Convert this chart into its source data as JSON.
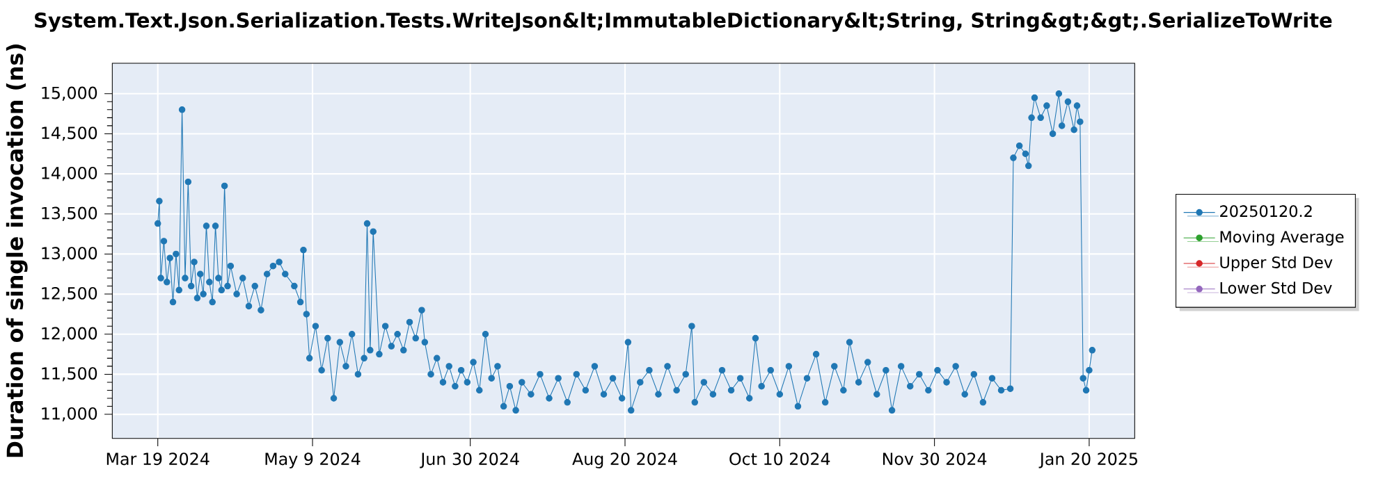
{
  "chart_data": {
    "type": "line",
    "title": "System.Text.Json.Serialization.Tests.WriteJson&lt;ImmutableDictionary&lt;String, String&gt;&gt;.SerializeToWrite",
    "ylabel": "Duration of single invocation (ns)",
    "xlim": [
      "2024-03-04",
      "2025-02-04"
    ],
    "xticks": [
      {
        "value": "2024-03-19",
        "label": "Mar 19 2024"
      },
      {
        "value": "2024-05-09",
        "label": "May 9 2024"
      },
      {
        "value": "2024-06-30",
        "label": "Jun 30 2024"
      },
      {
        "value": "2024-08-20",
        "label": "Aug 20 2024"
      },
      {
        "value": "2024-10-10",
        "label": "Oct 10 2024"
      },
      {
        "value": "2024-11-30",
        "label": "Nov 30 2024"
      },
      {
        "value": "2025-01-20",
        "label": "Jan 20 2025"
      }
    ],
    "ylim": [
      10700,
      15380
    ],
    "yticks": [
      {
        "value": 11000,
        "label": "11,000"
      },
      {
        "value": 11500,
        "label": "11,500"
      },
      {
        "value": 12000,
        "label": "12,000"
      },
      {
        "value": 12500,
        "label": "12,500"
      },
      {
        "value": 13000,
        "label": "13,000"
      },
      {
        "value": 13500,
        "label": "13,500"
      },
      {
        "value": 14000,
        "label": "14,000"
      },
      {
        "value": 14500,
        "label": "14,500"
      },
      {
        "value": 15000,
        "label": "15,000"
      }
    ],
    "grid": true,
    "legend": "right",
    "marker": "circle",
    "line_style": "solid",
    "x": [
      "2024-03-19T00:00",
      "2024-03-19T12:00",
      "2024-03-20",
      "2024-03-21",
      "2024-03-22",
      "2024-03-23",
      "2024-03-24",
      "2024-03-25",
      "2024-03-26",
      "2024-03-27",
      "2024-03-28",
      "2024-03-29",
      "2024-03-30",
      "2024-03-31",
      "2024-04-01",
      "2024-04-02",
      "2024-04-03",
      "2024-04-04",
      "2024-04-05",
      "2024-04-06",
      "2024-04-07",
      "2024-04-08",
      "2024-04-09",
      "2024-04-10",
      "2024-04-11",
      "2024-04-12",
      "2024-04-14",
      "2024-04-16",
      "2024-04-18",
      "2024-04-20",
      "2024-04-22",
      "2024-04-24",
      "2024-04-26",
      "2024-04-28",
      "2024-04-30",
      "2024-05-03",
      "2024-05-05",
      "2024-05-06",
      "2024-05-07",
      "2024-05-08",
      "2024-05-10",
      "2024-05-12",
      "2024-05-14",
      "2024-05-16",
      "2024-05-18",
      "2024-05-20",
      "2024-05-22",
      "2024-05-24",
      "2024-05-26",
      "2024-05-27",
      "2024-05-28",
      "2024-05-29",
      "2024-05-31",
      "2024-06-02",
      "2024-06-04",
      "2024-06-06",
      "2024-06-08",
      "2024-06-10",
      "2024-06-12",
      "2024-06-14",
      "2024-06-15",
      "2024-06-17",
      "2024-06-19",
      "2024-06-21",
      "2024-06-23",
      "2024-06-25",
      "2024-06-27",
      "2024-06-29",
      "2024-07-01",
      "2024-07-03",
      "2024-07-05",
      "2024-07-07",
      "2024-07-09",
      "2024-07-11",
      "2024-07-13",
      "2024-07-15",
      "2024-07-17",
      "2024-07-20",
      "2024-07-23",
      "2024-07-26",
      "2024-07-29",
      "2024-08-01",
      "2024-08-04",
      "2024-08-07",
      "2024-08-10",
      "2024-08-13",
      "2024-08-16",
      "2024-08-19",
      "2024-08-21",
      "2024-08-22",
      "2024-08-25",
      "2024-08-28",
      "2024-08-31",
      "2024-09-03",
      "2024-09-06",
      "2024-09-09",
      "2024-09-11",
      "2024-09-12",
      "2024-09-15",
      "2024-09-18",
      "2024-09-21",
      "2024-09-24",
      "2024-09-27",
      "2024-09-30",
      "2024-10-02",
      "2024-10-04",
      "2024-10-07",
      "2024-10-10",
      "2024-10-13",
      "2024-10-16",
      "2024-10-19",
      "2024-10-22",
      "2024-10-25",
      "2024-10-28",
      "2024-10-31",
      "2024-11-02",
      "2024-11-05",
      "2024-11-08",
      "2024-11-11",
      "2024-11-14",
      "2024-11-16",
      "2024-11-19",
      "2024-11-22",
      "2024-11-25",
      "2024-11-28",
      "2024-12-01",
      "2024-12-04",
      "2024-12-07",
      "2024-12-10",
      "2024-12-13",
      "2024-12-16",
      "2024-12-19",
      "2024-12-22",
      "2024-12-25",
      "2024-12-26",
      "2024-12-28",
      "2024-12-30",
      "2024-12-31",
      "2025-01-01",
      "2025-01-02",
      "2025-01-04",
      "2025-01-06",
      "2025-01-08",
      "2025-01-10",
      "2025-01-11",
      "2025-01-13",
      "2025-01-15",
      "2025-01-16",
      "2025-01-17",
      "2025-01-18",
      "2025-01-19",
      "2025-01-20",
      "2025-01-21"
    ],
    "series": [
      {
        "name": "20250120.2",
        "color": "#1f77b4",
        "values": [
          13380,
          13660,
          12700,
          13160,
          12650,
          12950,
          12400,
          13000,
          12550,
          14800,
          12700,
          13900,
          12600,
          12900,
          12450,
          12750,
          12500,
          13350,
          12650,
          12400,
          13350,
          12700,
          12550,
          13850,
          12600,
          12850,
          12500,
          12700,
          12350,
          12600,
          12300,
          12750,
          12850,
          12900,
          12750,
          12600,
          12400,
          13050,
          12250,
          11700,
          12100,
          11550,
          11950,
          11200,
          11900,
          11600,
          12000,
          11500,
          11700,
          13380,
          11800,
          13280,
          11750,
          12100,
          11850,
          12000,
          11800,
          12150,
          11950,
          12300,
          11900,
          11500,
          11700,
          11400,
          11600,
          11350,
          11550,
          11400,
          11650,
          11300,
          12000,
          11450,
          11600,
          11100,
          11350,
          11050,
          11400,
          11250,
          11500,
          11200,
          11450,
          11150,
          11500,
          11300,
          11600,
          11250,
          11450,
          11200,
          11900,
          11050,
          11400,
          11550,
          11250,
          11600,
          11300,
          11500,
          12100,
          11150,
          11400,
          11250,
          11550,
          11300,
          11450,
          11200,
          11950,
          11350,
          11550,
          11250,
          11600,
          11100,
          11450,
          11750,
          11150,
          11600,
          11300,
          11900,
          11400,
          11650,
          11250,
          11550,
          11050,
          11600,
          11350,
          11500,
          11300,
          11550,
          11400,
          11600,
          11250,
          11500,
          11150,
          11450,
          11300,
          11320,
          14200,
          14350,
          14250,
          14100,
          14700,
          14950,
          14700,
          14850,
          14500,
          15000,
          14600,
          14900,
          14550,
          14850,
          14650,
          11450,
          11300,
          11550,
          11800
        ]
      },
      {
        "name": "Moving Average",
        "color": "#2ca02c",
        "values": [
          null,
          null,
          null,
          null,
          null,
          null,
          null,
          null,
          null,
          null,
          null,
          null,
          null,
          null,
          null,
          null,
          null,
          null,
          null,
          null,
          null,
          null,
          null,
          null,
          null,
          null,
          null,
          null,
          null,
          null,
          null,
          null,
          null,
          null,
          null,
          null,
          null,
          null,
          null,
          null,
          null,
          null,
          null,
          null,
          null,
          null,
          null,
          null,
          null,
          null,
          null,
          null,
          null,
          null,
          null,
          null,
          null,
          null,
          null,
          null,
          null,
          null,
          null,
          null,
          null,
          null,
          null,
          null,
          null,
          null,
          null,
          null,
          null,
          null,
          null,
          null,
          null,
          null,
          null,
          null,
          null,
          null,
          null,
          null,
          null,
          null,
          null,
          null,
          null,
          null,
          null,
          null,
          null,
          null,
          null,
          null,
          null,
          null,
          null,
          null,
          null,
          null,
          null,
          null,
          null,
          null,
          null,
          null,
          null,
          null,
          null,
          null,
          null,
          null,
          null,
          null,
          null,
          null,
          null,
          null,
          null,
          null,
          null,
          null,
          null,
          null,
          null,
          null,
          null,
          null,
          null,
          null,
          null,
          null,
          null,
          null,
          null,
          null,
          null,
          null,
          null,
          null,
          null,
          null,
          null,
          null,
          null,
          null,
          null,
          null,
          null,
          null,
          null
        ]
      },
      {
        "name": "Upper Std Dev",
        "color": "#d62728",
        "values": [
          null,
          null,
          null,
          null,
          null,
          null,
          null,
          null,
          null,
          null,
          null,
          null,
          null,
          null,
          null,
          null,
          null,
          null,
          null,
          null,
          null,
          null,
          null,
          null,
          null,
          null,
          null,
          null,
          null,
          null,
          null,
          null,
          null,
          null,
          null,
          null,
          null,
          null,
          null,
          null,
          null,
          null,
          null,
          null,
          null,
          null,
          null,
          null,
          null,
          null,
          null,
          null,
          null,
          null,
          null,
          null,
          null,
          null,
          null,
          null,
          null,
          null,
          null,
          null,
          null,
          null,
          null,
          null,
          null,
          null,
          null,
          null,
          null,
          null,
          null,
          null,
          null,
          null,
          null,
          null,
          null,
          null,
          null,
          null,
          null,
          null,
          null,
          null,
          null,
          null,
          null,
          null,
          null,
          null,
          null,
          null,
          null,
          null,
          null,
          null,
          null,
          null,
          null,
          null,
          null,
          null,
          null,
          null,
          null,
          null,
          null,
          null,
          null,
          null,
          null,
          null,
          null,
          null,
          null,
          null,
          null,
          null,
          null,
          null,
          null,
          null,
          null,
          null,
          null,
          null,
          null,
          null,
          null,
          null,
          null,
          null,
          null,
          null,
          null,
          null,
          null,
          null,
          null,
          null,
          null,
          null,
          null,
          null,
          null,
          null,
          null,
          null,
          null
        ]
      },
      {
        "name": "Lower Std Dev",
        "color": "#9467bd",
        "values": [
          null,
          null,
          null,
          null,
          null,
          null,
          null,
          null,
          null,
          null,
          null,
          null,
          null,
          null,
          null,
          null,
          null,
          null,
          null,
          null,
          null,
          null,
          null,
          null,
          null,
          null,
          null,
          null,
          null,
          null,
          null,
          null,
          null,
          null,
          null,
          null,
          null,
          null,
          null,
          null,
          null,
          null,
          null,
          null,
          null,
          null,
          null,
          null,
          null,
          null,
          null,
          null,
          null,
          null,
          null,
          null,
          null,
          null,
          null,
          null,
          null,
          null,
          null,
          null,
          null,
          null,
          null,
          null,
          null,
          null,
          null,
          null,
          null,
          null,
          null,
          null,
          null,
          null,
          null,
          null,
          null,
          null,
          null,
          null,
          null,
          null,
          null,
          null,
          null,
          null,
          null,
          null,
          null,
          null,
          null,
          null,
          null,
          null,
          null,
          null,
          null,
          null,
          null,
          null,
          null,
          null,
          null,
          null,
          null,
          null,
          null,
          null,
          null,
          null,
          null,
          null,
          null,
          null,
          null,
          null,
          null,
          null,
          null,
          null,
          null,
          null,
          null,
          null,
          null,
          null,
          null,
          null,
          null,
          null,
          null,
          null,
          null,
          null,
          null,
          null,
          null,
          null,
          null,
          null,
          null,
          null,
          null,
          null,
          null,
          null,
          null,
          null,
          null
        ]
      }
    ]
  }
}
